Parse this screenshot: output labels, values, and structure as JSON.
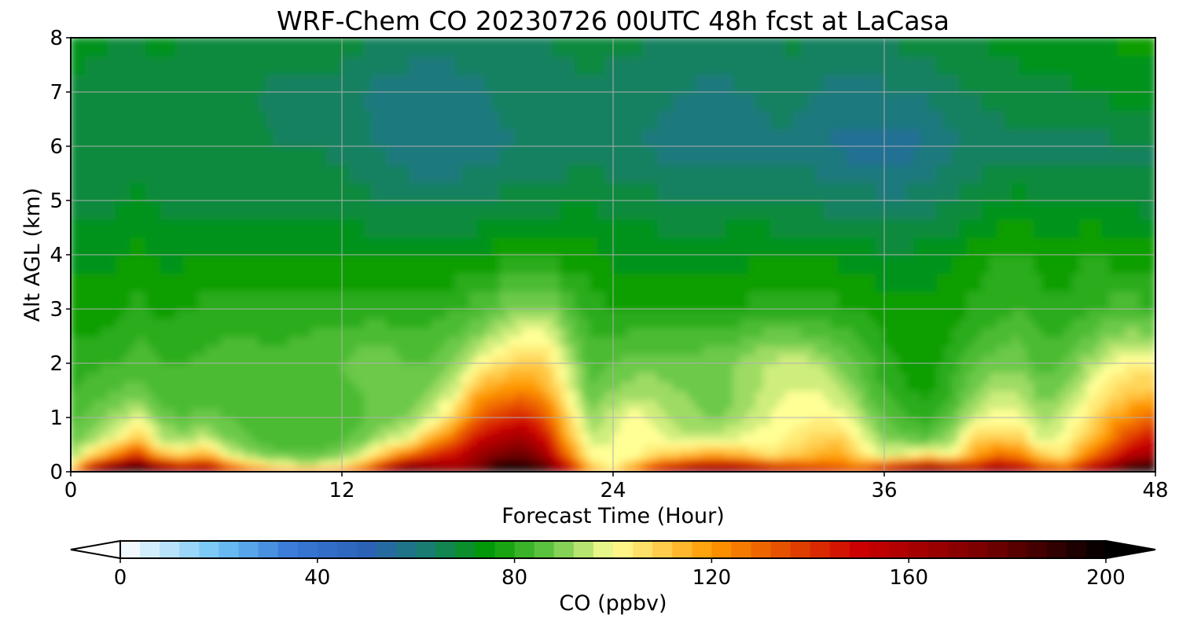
{
  "chart_data": {
    "type": "heatmap",
    "title": "WRF-Chem CO  20230726 00UTC 48h fcst at LaCasa",
    "xlabel": "Forecast Time (Hour)",
    "ylabel": "Alt AGL (km)",
    "xlim": [
      0,
      48
    ],
    "ylim": [
      0,
      8
    ],
    "xticks": [
      0,
      12,
      24,
      36,
      48
    ],
    "yticks": [
      0,
      1,
      2,
      3,
      4,
      5,
      6,
      7,
      8
    ],
    "grid": true,
    "x": [
      0,
      1,
      2,
      3,
      4,
      5,
      6,
      7,
      8,
      9,
      10,
      11,
      12,
      13,
      14,
      15,
      16,
      17,
      18,
      19,
      20,
      21,
      22,
      23,
      24,
      25,
      26,
      27,
      28,
      29,
      30,
      31,
      32,
      33,
      34,
      35,
      36,
      37,
      38,
      39,
      40,
      41,
      42,
      43,
      44,
      45,
      46,
      47,
      48
    ],
    "y": [
      0,
      0.1,
      0.3,
      0.6,
      1,
      1.5,
      2,
      2.5,
      3,
      4,
      5,
      6,
      7,
      8
    ],
    "values": [
      [
        120,
        185,
        195,
        195,
        185,
        180,
        175,
        160,
        150,
        145,
        140,
        140,
        145,
        155,
        175,
        195,
        190,
        185,
        190,
        200,
        200,
        195,
        165,
        125,
        115,
        130,
        160,
        175,
        185,
        185,
        180,
        170,
        165,
        160,
        155,
        150,
        165,
        180,
        190,
        180,
        175,
        185,
        175,
        160,
        150,
        175,
        185,
        200,
        200
      ],
      [
        100,
        150,
        175,
        190,
        165,
        150,
        160,
        130,
        115,
        105,
        100,
        100,
        105,
        120,
        150,
        175,
        165,
        160,
        170,
        195,
        195,
        185,
        150,
        110,
        100,
        115,
        140,
        150,
        160,
        160,
        155,
        145,
        140,
        135,
        130,
        125,
        140,
        155,
        165,
        155,
        145,
        160,
        150,
        135,
        125,
        150,
        165,
        190,
        195
      ],
      [
        90,
        108,
        125,
        145,
        115,
        110,
        118,
        100,
        92,
        88,
        87,
        87,
        90,
        100,
        115,
        130,
        145,
        150,
        165,
        175,
        180,
        165,
        130,
        100,
        98,
        100,
        108,
        112,
        118,
        118,
        112,
        106,
        110,
        115,
        120,
        105,
        98,
        100,
        108,
        100,
        118,
        130,
        125,
        110,
        105,
        125,
        140,
        160,
        165
      ],
      [
        87,
        92,
        100,
        115,
        95,
        92,
        96,
        89,
        86,
        84,
        83,
        83,
        85,
        88,
        95,
        100,
        118,
        130,
        150,
        160,
        165,
        150,
        118,
        96,
        98,
        102,
        100,
        95,
        96,
        97,
        100,
        100,
        104,
        108,
        112,
        100,
        90,
        88,
        86,
        92,
        108,
        112,
        110,
        96,
        100,
        110,
        125,
        140,
        150
      ],
      [
        85,
        88,
        92,
        98,
        88,
        86,
        88,
        86,
        84,
        83,
        82,
        82,
        84,
        86,
        88,
        90,
        96,
        110,
        130,
        140,
        145,
        135,
        108,
        90,
        96,
        100,
        96,
        92,
        90,
        90,
        94,
        98,
        100,
        102,
        100,
        94,
        86,
        82,
        80,
        86,
        96,
        100,
        100,
        92,
        96,
        104,
        115,
        125,
        130
      ],
      [
        82,
        84,
        86,
        88,
        84,
        83,
        84,
        84,
        83,
        82,
        82,
        82,
        84,
        86,
        88,
        88,
        90,
        96,
        115,
        120,
        125,
        118,
        100,
        86,
        90,
        92,
        92,
        90,
        88,
        88,
        92,
        96,
        98,
        98,
        94,
        88,
        82,
        78,
        77,
        82,
        90,
        94,
        94,
        88,
        90,
        98,
        105,
        110,
        112
      ],
      [
        80,
        81,
        82,
        84,
        82,
        82,
        83,
        84,
        84,
        83,
        83,
        84,
        86,
        88,
        88,
        86,
        86,
        90,
        100,
        105,
        110,
        108,
        96,
        84,
        86,
        88,
        88,
        88,
        88,
        88,
        92,
        95,
        96,
        95,
        90,
        85,
        80,
        77,
        76,
        80,
        86,
        88,
        88,
        84,
        86,
        92,
        98,
        102,
        100
      ],
      [
        78,
        78,
        79,
        82,
        80,
        80,
        81,
        82,
        82,
        81,
        82,
        83,
        84,
        85,
        85,
        84,
        84,
        86,
        90,
        95,
        100,
        100,
        90,
        82,
        82,
        83,
        83,
        83,
        84,
        84,
        86,
        88,
        88,
        86,
        84,
        82,
        78,
        76,
        76,
        78,
        82,
        84,
        86,
        82,
        82,
        86,
        90,
        92,
        90
      ],
      [
        76,
        76,
        77,
        79,
        77,
        78,
        79,
        79,
        79,
        79,
        79,
        79,
        79,
        79,
        79,
        79,
        80,
        82,
        84,
        88,
        92,
        92,
        86,
        80,
        78,
        78,
        78,
        78,
        78,
        78,
        79,
        80,
        80,
        80,
        79,
        78,
        76,
        75,
        75,
        76,
        79,
        80,
        82,
        79,
        79,
        81,
        83,
        84,
        82
      ],
      [
        72,
        72,
        73,
        76,
        73,
        73,
        74,
        73,
        73,
        73,
        73,
        73,
        73,
        73,
        73,
        73,
        73,
        74,
        74,
        76,
        78,
        77,
        76,
        76,
        73,
        73,
        73,
        73,
        73,
        73,
        73,
        73,
        73,
        73,
        73,
        72,
        71,
        71,
        72,
        73,
        76,
        78,
        79,
        76,
        76,
        78,
        77,
        76,
        75
      ],
      [
        69,
        69,
        69,
        71,
        69,
        69,
        69,
        69,
        69,
        68,
        68,
        68,
        68,
        67,
        66,
        65,
        65,
        65,
        66,
        67,
        68,
        68,
        69,
        70,
        68,
        68,
        67,
        66,
        66,
        67,
        67,
        67,
        66,
        65,
        64,
        64,
        63,
        63,
        64,
        66,
        68,
        70,
        72,
        70,
        70,
        71,
        70,
        69,
        68
      ],
      [
        68,
        67,
        67,
        68,
        67,
        67,
        66,
        67,
        67,
        66,
        66,
        66,
        65,
        63,
        61,
        59,
        58,
        58,
        59,
        61,
        62,
        62,
        63,
        64,
        63,
        62,
        61,
        59,
        58,
        59,
        60,
        61,
        61,
        59,
        57,
        56,
        55,
        56,
        58,
        61,
        63,
        64,
        65,
        64,
        64,
        65,
        65,
        65,
        65
      ],
      [
        69,
        68,
        67,
        68,
        68,
        67,
        66,
        66,
        66,
        65,
        65,
        65,
        64,
        62,
        60,
        59,
        59,
        60,
        61,
        63,
        63,
        63,
        64,
        65,
        64,
        63,
        63,
        62,
        61,
        61,
        62,
        63,
        63,
        62,
        60,
        60,
        61,
        62,
        63,
        65,
        66,
        67,
        68,
        68,
        69,
        70,
        71,
        72,
        72
      ],
      [
        72,
        71,
        70,
        70,
        71,
        70,
        69,
        69,
        69,
        69,
        69,
        69,
        68,
        67,
        66,
        65,
        64,
        64,
        65,
        66,
        66,
        66,
        67,
        68,
        67,
        67,
        66,
        66,
        66,
        66,
        66,
        66,
        67,
        66,
        66,
        66,
        66,
        67,
        68,
        69,
        70,
        71,
        72,
        72,
        73,
        74,
        74,
        75,
        75
      ]
    ],
    "colorbar": {
      "label": "CO  (ppbv)",
      "min": 0,
      "max": 200,
      "ticks": [
        0,
        40,
        80,
        120,
        160,
        200
      ],
      "extend": "both",
      "stops": [
        [
          0,
          "#ffffff"
        ],
        [
          20,
          "#6ec4f5"
        ],
        [
          35,
          "#3778d6"
        ],
        [
          50,
          "#2c62b6"
        ],
        [
          62,
          "#1a7d72"
        ],
        [
          75,
          "#009a00"
        ],
        [
          88,
          "#6cc94a"
        ],
        [
          100,
          "#ffff96"
        ],
        [
          120,
          "#ff9900"
        ],
        [
          150,
          "#cc0000"
        ],
        [
          175,
          "#7a0000"
        ],
        [
          200,
          "#000000"
        ]
      ]
    }
  }
}
